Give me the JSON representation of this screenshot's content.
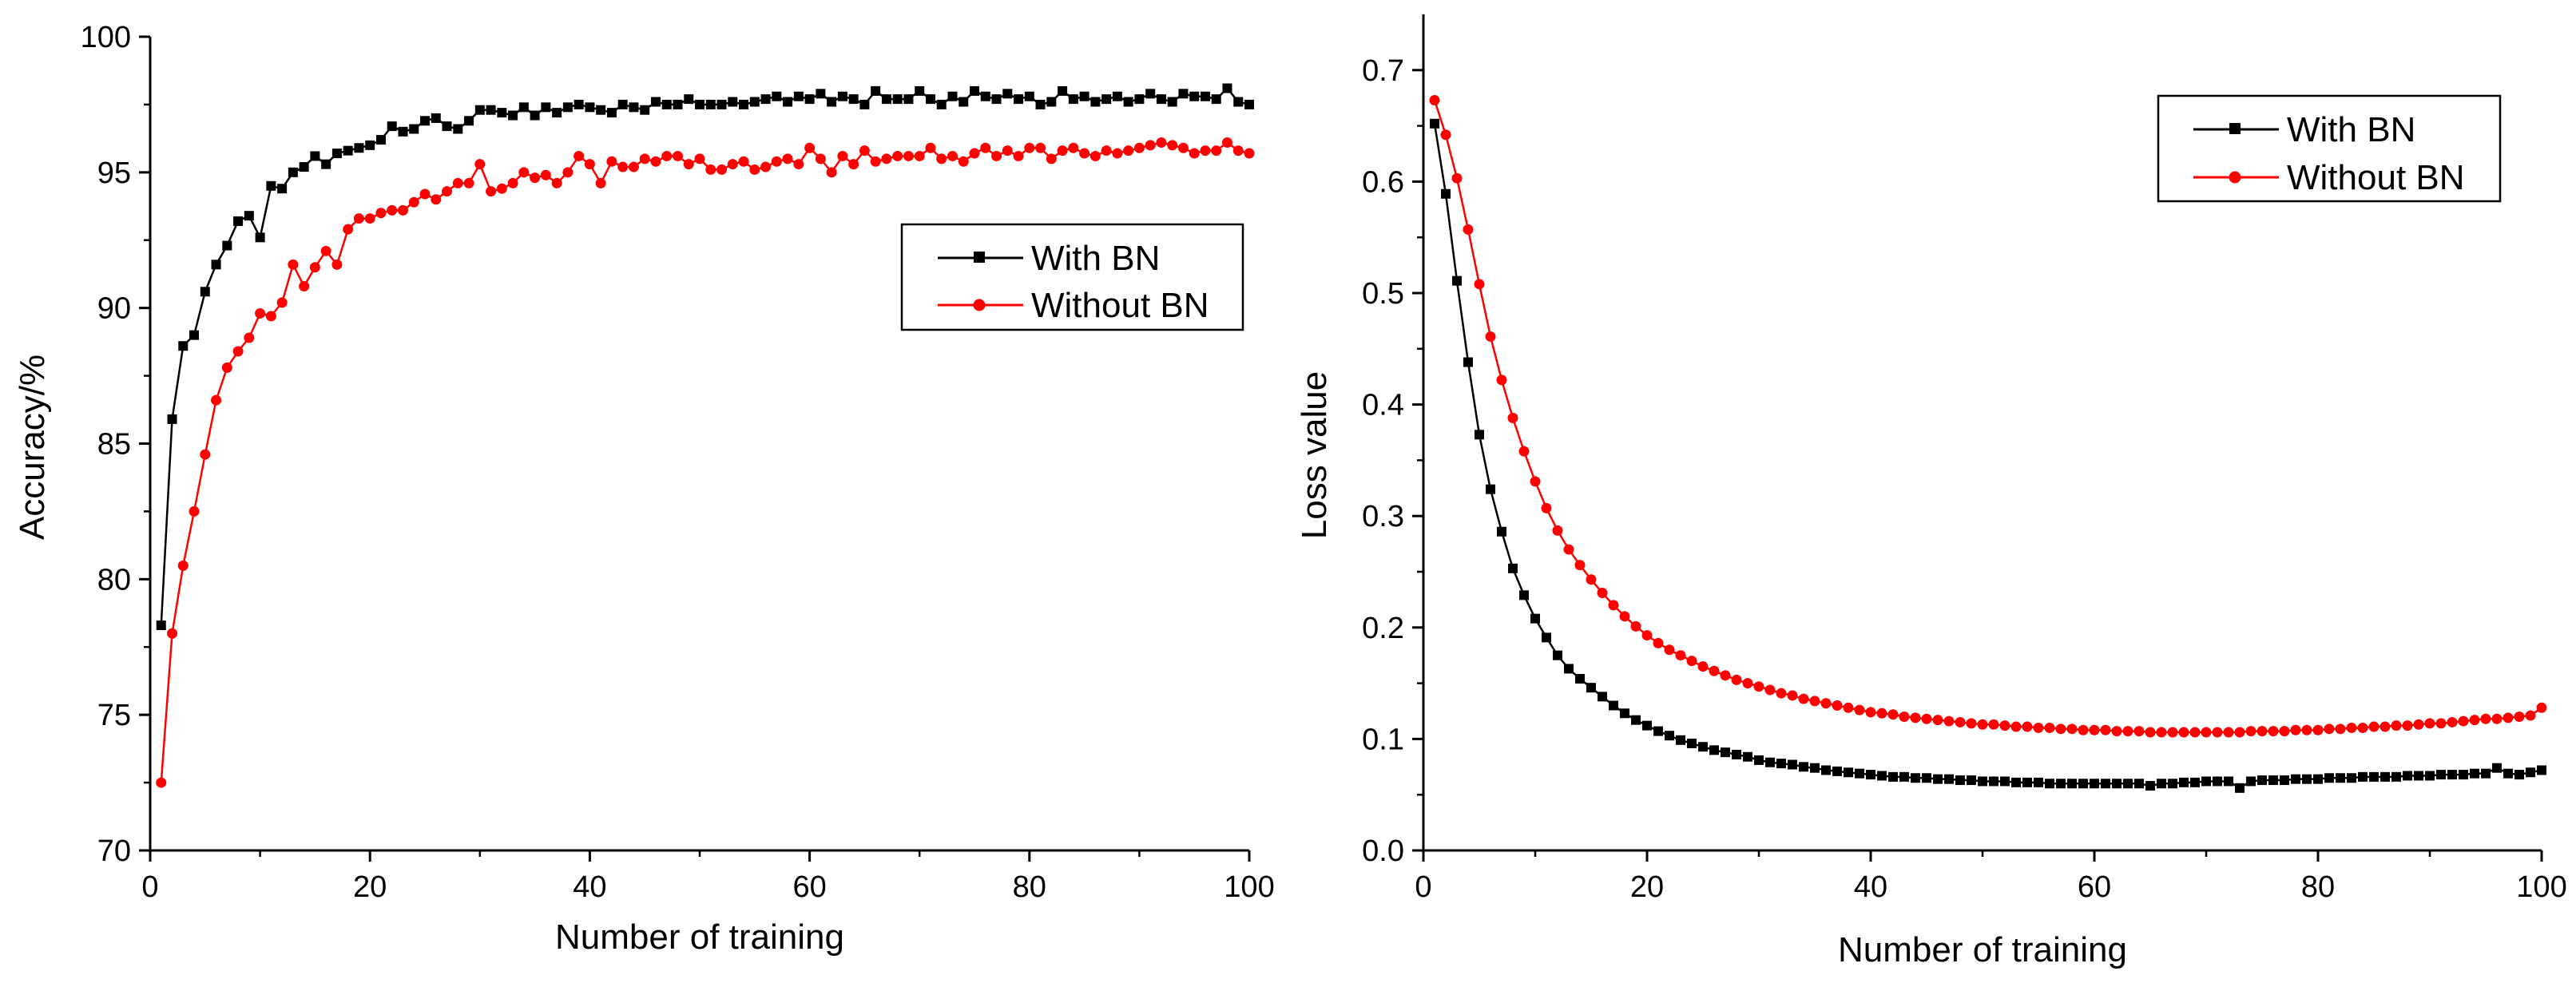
{
  "colors": {
    "series_1": "#000000",
    "series_2": "#ff0000",
    "axis": "#000000",
    "background": "#ffffff"
  },
  "chart_data": [
    {
      "type": "line",
      "title": "",
      "xlabel": "Number of training",
      "ylabel": "Accuracy/%",
      "xlim": [
        0,
        100
      ],
      "ylim": [
        70,
        100
      ],
      "xticks": [
        "0",
        "20",
        "40",
        "60",
        "80",
        "100"
      ],
      "yticks": [
        "70",
        "75",
        "80",
        "85",
        "90",
        "95",
        "100"
      ],
      "legend_position": "center-right",
      "x": [
        1,
        2,
        3,
        4,
        5,
        6,
        7,
        8,
        9,
        10,
        11,
        12,
        13,
        14,
        15,
        16,
        17,
        18,
        19,
        20,
        21,
        22,
        23,
        24,
        25,
        26,
        27,
        28,
        29,
        30,
        31,
        32,
        33,
        34,
        35,
        36,
        37,
        38,
        39,
        40,
        41,
        42,
        43,
        44,
        45,
        46,
        47,
        48,
        49,
        50,
        51,
        52,
        53,
        54,
        55,
        56,
        57,
        58,
        59,
        60,
        61,
        62,
        63,
        64,
        65,
        66,
        67,
        68,
        69,
        70,
        71,
        72,
        73,
        74,
        75,
        76,
        77,
        78,
        79,
        80,
        81,
        82,
        83,
        84,
        85,
        86,
        87,
        88,
        89,
        90,
        91,
        92,
        93,
        94,
        95,
        96,
        97,
        98,
        99,
        100
      ],
      "series": [
        {
          "name": "With BN",
          "color": "#000000",
          "marker": "square",
          "values": [
            78.3,
            85.9,
            88.6,
            89.0,
            90.6,
            91.6,
            92.3,
            93.2,
            93.4,
            92.6,
            94.5,
            94.4,
            95.0,
            95.2,
            95.6,
            95.3,
            95.7,
            95.8,
            95.9,
            96.0,
            96.2,
            96.7,
            96.5,
            96.6,
            96.9,
            97.0,
            96.7,
            96.6,
            96.9,
            97.3,
            97.3,
            97.2,
            97.1,
            97.4,
            97.1,
            97.4,
            97.2,
            97.4,
            97.5,
            97.4,
            97.3,
            97.2,
            97.5,
            97.4,
            97.3,
            97.6,
            97.5,
            97.5,
            97.7,
            97.5,
            97.5,
            97.5,
            97.6,
            97.5,
            97.6,
            97.7,
            97.8,
            97.6,
            97.8,
            97.7,
            97.9,
            97.6,
            97.8,
            97.7,
            97.5,
            98.0,
            97.7,
            97.7,
            97.7,
            98.0,
            97.7,
            97.5,
            97.8,
            97.6,
            98.0,
            97.8,
            97.7,
            97.9,
            97.7,
            97.8,
            97.5,
            97.6,
            98.0,
            97.7,
            97.8,
            97.6,
            97.7,
            97.8,
            97.6,
            97.7,
            97.9,
            97.7,
            97.6,
            97.9,
            97.8,
            97.8,
            97.7,
            98.1,
            97.6,
            97.5
          ]
        },
        {
          "name": "Without BN",
          "color": "#ff0000",
          "marker": "circle",
          "values": [
            72.5,
            78.0,
            80.5,
            82.5,
            84.6,
            86.6,
            87.8,
            88.4,
            88.9,
            89.8,
            89.7,
            90.2,
            91.6,
            90.8,
            91.5,
            92.1,
            91.6,
            92.9,
            93.3,
            93.3,
            93.5,
            93.6,
            93.6,
            93.9,
            94.2,
            94.0,
            94.3,
            94.6,
            94.6,
            95.3,
            94.3,
            94.4,
            94.6,
            95.0,
            94.8,
            94.9,
            94.6,
            95.0,
            95.6,
            95.3,
            94.6,
            95.4,
            95.2,
            95.2,
            95.5,
            95.4,
            95.6,
            95.6,
            95.3,
            95.5,
            95.1,
            95.1,
            95.3,
            95.4,
            95.1,
            95.2,
            95.4,
            95.5,
            95.3,
            95.9,
            95.5,
            95.0,
            95.6,
            95.3,
            95.8,
            95.4,
            95.5,
            95.6,
            95.6,
            95.6,
            95.9,
            95.5,
            95.6,
            95.4,
            95.7,
            95.9,
            95.6,
            95.8,
            95.6,
            95.9,
            95.9,
            95.5,
            95.8,
            95.9,
            95.7,
            95.6,
            95.8,
            95.7,
            95.8,
            95.9,
            96.0,
            96.1,
            96.0,
            95.9,
            95.7,
            95.8,
            95.8,
            96.1,
            95.8,
            95.7
          ]
        }
      ]
    },
    {
      "type": "line",
      "title": "",
      "xlabel": "Number of training",
      "ylabel": "Loss value",
      "xlim": [
        0,
        100
      ],
      "ylim": [
        0,
        0.75
      ],
      "xticks": [
        "0",
        "20",
        "40",
        "60",
        "80",
        "100"
      ],
      "yticks": [
        "0.0",
        "0.1",
        "0.2",
        "0.3",
        "0.4",
        "0.5",
        "0.6",
        "0.7"
      ],
      "legend_position": "top-right",
      "x": [
        1,
        2,
        3,
        4,
        5,
        6,
        7,
        8,
        9,
        10,
        11,
        12,
        13,
        14,
        15,
        16,
        17,
        18,
        19,
        20,
        21,
        22,
        23,
        24,
        25,
        26,
        27,
        28,
        29,
        30,
        31,
        32,
        33,
        34,
        35,
        36,
        37,
        38,
        39,
        40,
        41,
        42,
        43,
        44,
        45,
        46,
        47,
        48,
        49,
        50,
        51,
        52,
        53,
        54,
        55,
        56,
        57,
        58,
        59,
        60,
        61,
        62,
        63,
        64,
        65,
        66,
        67,
        68,
        69,
        70,
        71,
        72,
        73,
        74,
        75,
        76,
        77,
        78,
        79,
        80,
        81,
        82,
        83,
        84,
        85,
        86,
        87,
        88,
        89,
        90,
        91,
        92,
        93,
        94,
        95,
        96,
        97,
        98,
        99,
        100
      ],
      "series": [
        {
          "name": "With BN",
          "color": "#000000",
          "marker": "square",
          "values": [
            0.652,
            0.589,
            0.511,
            0.438,
            0.373,
            0.324,
            0.286,
            0.253,
            0.229,
            0.208,
            0.191,
            0.175,
            0.163,
            0.154,
            0.146,
            0.138,
            0.13,
            0.123,
            0.117,
            0.112,
            0.107,
            0.103,
            0.099,
            0.096,
            0.093,
            0.09,
            0.088,
            0.086,
            0.084,
            0.081,
            0.079,
            0.078,
            0.077,
            0.075,
            0.074,
            0.072,
            0.071,
            0.07,
            0.069,
            0.068,
            0.067,
            0.066,
            0.066,
            0.065,
            0.065,
            0.064,
            0.064,
            0.063,
            0.063,
            0.062,
            0.062,
            0.062,
            0.061,
            0.061,
            0.061,
            0.06,
            0.06,
            0.06,
            0.06,
            0.06,
            0.06,
            0.06,
            0.06,
            0.06,
            0.058,
            0.06,
            0.06,
            0.061,
            0.061,
            0.062,
            0.062,
            0.062,
            0.056,
            0.062,
            0.063,
            0.063,
            0.063,
            0.064,
            0.064,
            0.064,
            0.065,
            0.065,
            0.065,
            0.066,
            0.066,
            0.066,
            0.066,
            0.067,
            0.067,
            0.067,
            0.068,
            0.068,
            0.068,
            0.069,
            0.069,
            0.074,
            0.069,
            0.068,
            0.07,
            0.072
          ]
        },
        {
          "name": "Without BN",
          "color": "#ff0000",
          "marker": "circle",
          "values": [
            0.673,
            0.642,
            0.603,
            0.557,
            0.508,
            0.461,
            0.422,
            0.388,
            0.358,
            0.331,
            0.307,
            0.287,
            0.27,
            0.256,
            0.243,
            0.231,
            0.22,
            0.21,
            0.201,
            0.193,
            0.186,
            0.18,
            0.175,
            0.17,
            0.165,
            0.161,
            0.157,
            0.153,
            0.15,
            0.147,
            0.144,
            0.141,
            0.139,
            0.136,
            0.134,
            0.132,
            0.13,
            0.128,
            0.126,
            0.124,
            0.123,
            0.122,
            0.12,
            0.119,
            0.118,
            0.117,
            0.116,
            0.115,
            0.114,
            0.113,
            0.113,
            0.112,
            0.111,
            0.111,
            0.11,
            0.11,
            0.109,
            0.109,
            0.108,
            0.108,
            0.108,
            0.107,
            0.107,
            0.107,
            0.106,
            0.106,
            0.106,
            0.106,
            0.106,
            0.106,
            0.106,
            0.106,
            0.106,
            0.107,
            0.107,
            0.107,
            0.107,
            0.108,
            0.108,
            0.108,
            0.109,
            0.109,
            0.11,
            0.11,
            0.111,
            0.111,
            0.112,
            0.112,
            0.113,
            0.114,
            0.114,
            0.115,
            0.116,
            0.117,
            0.118,
            0.118,
            0.119,
            0.12,
            0.121,
            0.128
          ]
        }
      ]
    }
  ]
}
